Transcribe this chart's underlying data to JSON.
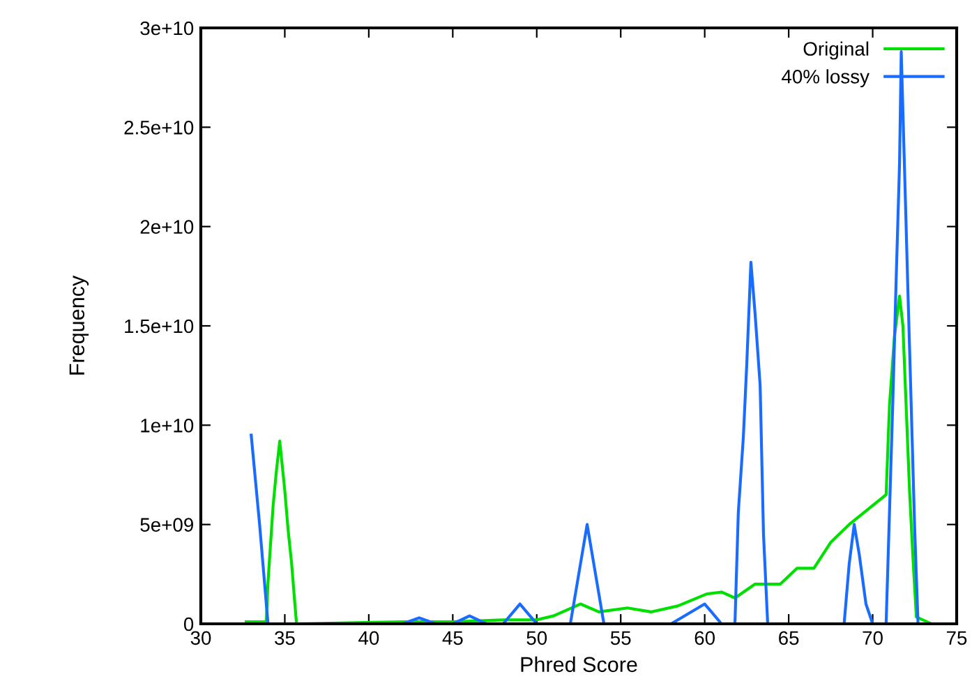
{
  "chart_data": {
    "type": "line",
    "xlabel": "Phred Score",
    "ylabel": "Frequency",
    "xlim": [
      30,
      75
    ],
    "xticks": [
      30,
      35,
      40,
      45,
      50,
      55,
      60,
      65,
      70,
      75
    ],
    "ylim": [
      0,
      30000000000
    ],
    "yticks": [
      0,
      {
        "value": 5000000000.0,
        "label": "5e+09"
      },
      {
        "value": 10000000000.0,
        "label": "1e+10"
      },
      {
        "value": 15000000000.0,
        "label": "1.5e+10"
      },
      {
        "value": 20000000000.0,
        "label": "2e+10"
      },
      {
        "value": 25000000000.0,
        "label": "2.5e+10"
      },
      {
        "value": 30000000000.0,
        "label": "3e+10"
      }
    ],
    "grid": false,
    "legend": "top right",
    "marker": "none",
    "line_style": "solid",
    "series": [
      {
        "name": "Original",
        "color": "#00e000",
        "x": [
          32.7,
          33.9,
          34.0,
          34.3,
          34.5,
          34.7,
          35.0,
          35.2,
          35.4,
          35.6,
          35.7,
          42,
          45,
          48,
          50,
          51,
          52.6,
          53.7,
          55.4,
          56.8,
          58.4,
          60.1,
          61,
          61.8,
          63,
          64.5,
          65.5,
          66.5,
          67.5,
          68.6,
          70.8,
          71.0,
          71.3,
          71.6,
          71.8,
          72.0,
          72.2,
          72.4,
          72.6,
          73.5
        ],
        "values": [
          100000000.0,
          100000000.0,
          2100000000.0,
          5900000000.0,
          7700000000.0,
          9200000000.0,
          6700000000.0,
          4700000000.0,
          3100000000.0,
          1000000000.0,
          0,
          100000000.0,
          100000000.0,
          200000000.0,
          200000000.0,
          400000000.0,
          1000000000.0,
          600000000.0,
          800000000.0,
          600000000.0,
          900000000.0,
          1500000000.0,
          1600000000.0,
          1300000000.0,
          2000000000.0,
          2000000000.0,
          2800000000.0,
          2800000000.0,
          4100000000.0,
          5000000000.0,
          6500000000.0,
          11000000000.0,
          14500000000.0,
          16500000000.0,
          15000000000.0,
          10800000000.0,
          6600000000.0,
          3300000000.0,
          350000000.0,
          0
        ]
      },
      {
        "name": "40% lossy",
        "color": "#1a6cff",
        "x": [
          33,
          33.5,
          34,
          42,
          43,
          44,
          45,
          46,
          47,
          48,
          49,
          50,
          52,
          53,
          54,
          58,
          60,
          61,
          61.8,
          62.0,
          62.3,
          62.5,
          62.75,
          63.0,
          63.3,
          63.5,
          63.75,
          68.3,
          68.6,
          68.9,
          69.2,
          69.6,
          70,
          70.8,
          71.0,
          71.2,
          71.4,
          71.6,
          71.7,
          71.9,
          72.1,
          72.3,
          72.5,
          72.7
        ],
        "values": [
          9500000000.0,
          5000000000.0,
          0,
          0,
          300000000.0,
          0,
          0,
          400000000.0,
          0,
          0,
          1000000000.0,
          0,
          0,
          5000000000.0,
          0,
          0,
          1000000000.0,
          0,
          0,
          5600000000.0,
          9400000000.0,
          13000000000.0,
          18200000000.0,
          15600000000.0,
          12000000000.0,
          4500000000.0,
          0,
          0,
          3000000000.0,
          5000000000.0,
          3500000000.0,
          1000000000.0,
          0,
          0,
          5600000000.0,
          11200000000.0,
          17400000000.0,
          23200000000.0,
          28800000000.0,
          22800000000.0,
          16700000000.0,
          10800000000.0,
          4800000000.0,
          0
        ]
      }
    ]
  }
}
